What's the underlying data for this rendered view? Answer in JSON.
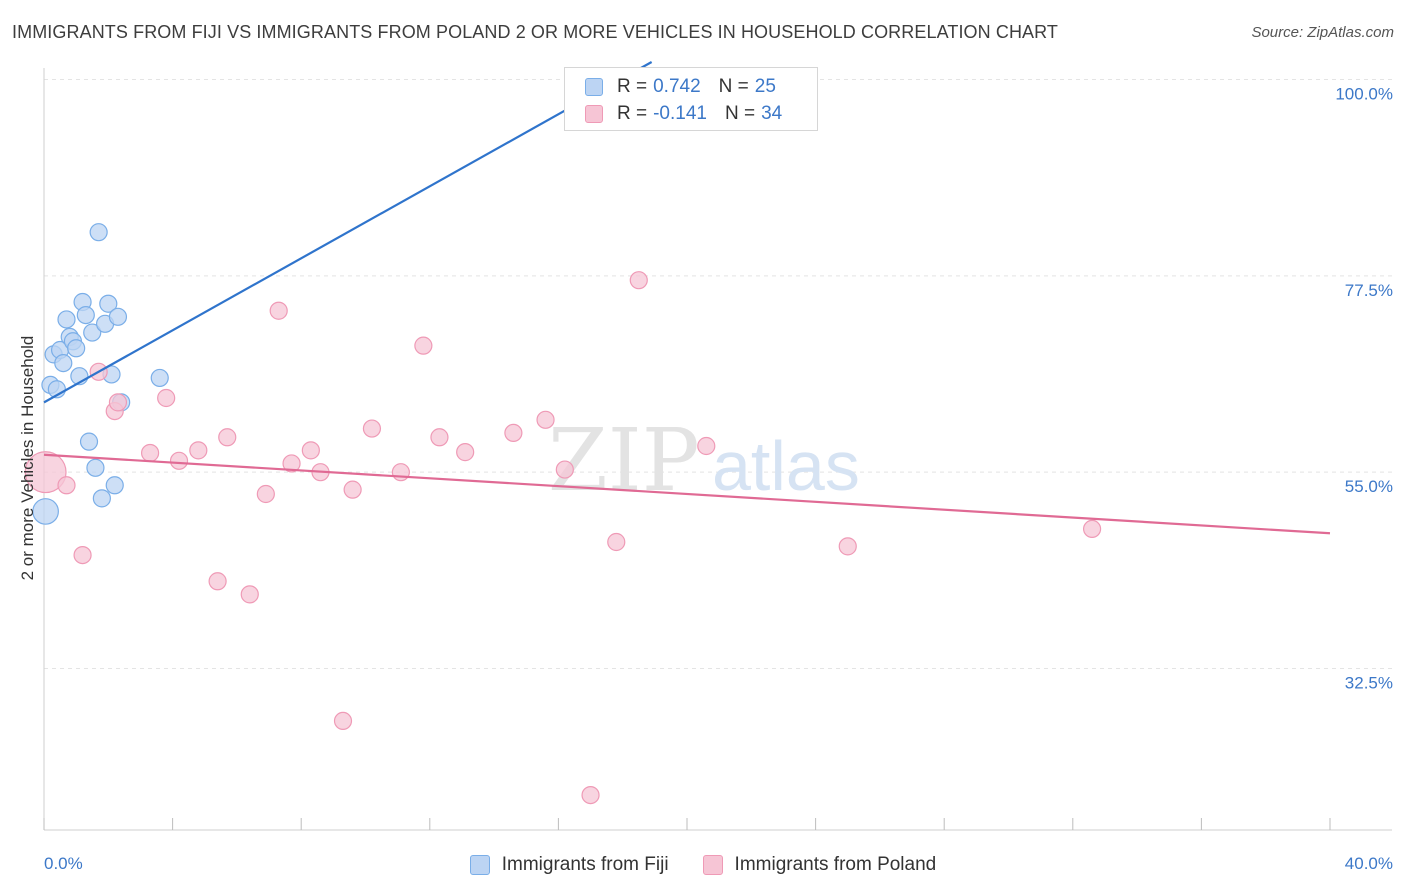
{
  "chart_data": {
    "type": "scatter",
    "title": "IMMIGRANTS FROM FIJI VS IMMIGRANTS FROM POLAND 2 OR MORE VEHICLES IN HOUSEHOLD CORRELATION CHART",
    "source": "Source: ZipAtlas.com",
    "xlabel": "",
    "ylabel": "2 or more Vehicles in Household",
    "xlim": [
      0,
      40
    ],
    "ylim": [
      14,
      102
    ],
    "x_tick_labels": [
      "0.0%",
      "40.0%"
    ],
    "y_ticks": [
      {
        "value": 100,
        "label": "100.0%"
      },
      {
        "value": 77.5,
        "label": "77.5%"
      },
      {
        "value": 55,
        "label": "55.0%"
      },
      {
        "value": 32.5,
        "label": "32.5%"
      }
    ],
    "watermark": "ZIPatlas",
    "series": [
      {
        "name": "Immigrants from Fiji",
        "color": "#7aaee8",
        "fill": "#bcd4f3",
        "line_color": "#2f74cc",
        "R": "0.742",
        "N": "25",
        "trend": {
          "x": [
            0,
            18.9
          ],
          "y": [
            63.0,
            102.0
          ]
        },
        "points": [
          {
            "x": 0.05,
            "y": 50.5,
            "s": 1.5
          },
          {
            "x": 0.2,
            "y": 65.0,
            "s": 1
          },
          {
            "x": 0.3,
            "y": 68.5,
            "s": 1
          },
          {
            "x": 0.4,
            "y": 64.5,
            "s": 1
          },
          {
            "x": 0.5,
            "y": 69.0,
            "s": 1
          },
          {
            "x": 0.6,
            "y": 67.5,
            "s": 1
          },
          {
            "x": 0.7,
            "y": 72.5,
            "s": 1
          },
          {
            "x": 0.8,
            "y": 70.5,
            "s": 1
          },
          {
            "x": 0.9,
            "y": 70.0,
            "s": 1
          },
          {
            "x": 1.0,
            "y": 69.2,
            "s": 1
          },
          {
            "x": 1.1,
            "y": 66.0,
            "s": 1
          },
          {
            "x": 1.2,
            "y": 74.5,
            "s": 1
          },
          {
            "x": 1.3,
            "y": 73.0,
            "s": 1
          },
          {
            "x": 1.4,
            "y": 58.5,
            "s": 1
          },
          {
            "x": 1.5,
            "y": 71.0,
            "s": 1
          },
          {
            "x": 1.6,
            "y": 55.5,
            "s": 1
          },
          {
            "x": 1.7,
            "y": 82.5,
            "s": 1
          },
          {
            "x": 1.8,
            "y": 52.0,
            "s": 1
          },
          {
            "x": 1.9,
            "y": 72.0,
            "s": 1
          },
          {
            "x": 2.0,
            "y": 74.3,
            "s": 1
          },
          {
            "x": 2.1,
            "y": 66.2,
            "s": 1
          },
          {
            "x": 2.2,
            "y": 53.5,
            "s": 1
          },
          {
            "x": 2.3,
            "y": 72.8,
            "s": 1
          },
          {
            "x": 2.4,
            "y": 63.0,
            "s": 1
          },
          {
            "x": 3.6,
            "y": 65.8,
            "s": 1
          }
        ]
      },
      {
        "name": "Immigrants from Poland",
        "color": "#ef9ab6",
        "fill": "#f6c5d5",
        "line_color": "#e06a94",
        "R": "-0.141",
        "N": "34",
        "trend": {
          "x": [
            0,
            40
          ],
          "y": [
            57.0,
            48.0
          ]
        },
        "points": [
          {
            "x": 0.05,
            "y": 55.0,
            "s": 2.4
          },
          {
            "x": 0.7,
            "y": 53.5,
            "s": 1
          },
          {
            "x": 1.2,
            "y": 45.5,
            "s": 1
          },
          {
            "x": 1.7,
            "y": 66.5,
            "s": 1
          },
          {
            "x": 2.2,
            "y": 62.0,
            "s": 1
          },
          {
            "x": 2.3,
            "y": 63.0,
            "s": 1
          },
          {
            "x": 3.3,
            "y": 57.2,
            "s": 1
          },
          {
            "x": 3.8,
            "y": 63.5,
            "s": 1
          },
          {
            "x": 4.2,
            "y": 56.3,
            "s": 1
          },
          {
            "x": 4.8,
            "y": 57.5,
            "s": 1
          },
          {
            "x": 5.4,
            "y": 42.5,
            "s": 1
          },
          {
            "x": 5.7,
            "y": 59.0,
            "s": 1
          },
          {
            "x": 6.4,
            "y": 41.0,
            "s": 1
          },
          {
            "x": 6.9,
            "y": 52.5,
            "s": 1
          },
          {
            "x": 7.3,
            "y": 73.5,
            "s": 1
          },
          {
            "x": 7.7,
            "y": 56.0,
            "s": 1
          },
          {
            "x": 8.3,
            "y": 57.5,
            "s": 1
          },
          {
            "x": 8.6,
            "y": 55.0,
            "s": 1
          },
          {
            "x": 9.3,
            "y": 26.5,
            "s": 1
          },
          {
            "x": 9.6,
            "y": 53.0,
            "s": 1
          },
          {
            "x": 10.2,
            "y": 60.0,
            "s": 1
          },
          {
            "x": 11.1,
            "y": 55.0,
            "s": 1
          },
          {
            "x": 11.8,
            "y": 69.5,
            "s": 1
          },
          {
            "x": 12.3,
            "y": 59.0,
            "s": 1
          },
          {
            "x": 13.1,
            "y": 57.3,
            "s": 1
          },
          {
            "x": 14.6,
            "y": 59.5,
            "s": 1
          },
          {
            "x": 15.6,
            "y": 61.0,
            "s": 1
          },
          {
            "x": 16.2,
            "y": 55.3,
            "s": 1
          },
          {
            "x": 17.0,
            "y": 18.0,
            "s": 1
          },
          {
            "x": 17.8,
            "y": 47.0,
            "s": 1
          },
          {
            "x": 18.5,
            "y": 77.0,
            "s": 1
          },
          {
            "x": 20.6,
            "y": 58.0,
            "s": 1
          },
          {
            "x": 25.0,
            "y": 46.5,
            "s": 1
          },
          {
            "x": 32.6,
            "y": 48.5,
            "s": 1
          }
        ]
      }
    ],
    "legend": {
      "r_label": "R =",
      "n_label": "N ="
    }
  }
}
